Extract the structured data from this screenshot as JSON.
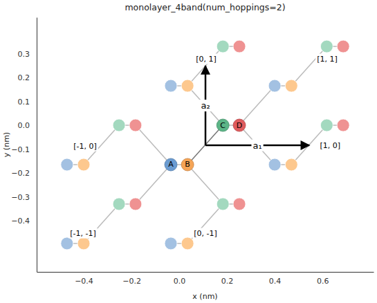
{
  "chart_data": {
    "type": "scatter",
    "title": "monolayer_4band(num_hoppings=2)",
    "x_label": "x (nm)",
    "y_label": "y (nm)",
    "xlim": [
      -0.597,
      0.814
    ],
    "ylim": [
      -0.614,
      0.452
    ],
    "xticks": [
      {
        "value": -0.4,
        "label": "−0.4"
      },
      {
        "value": -0.2,
        "label": "−0.2"
      },
      {
        "value": 0,
        "label": "0.0"
      },
      0.2,
      0.4,
      0.6
    ],
    "yticks": [
      {
        "value": -0.4,
        "label": "−0.4"
      },
      {
        "value": -0.3,
        "label": "−0.3"
      },
      {
        "value": -0.2,
        "label": "−0.2"
      },
      {
        "value": -0.1,
        "label": "−0.1"
      },
      {
        "value": 0,
        "label": "0.0"
      },
      0.1,
      0.2,
      0.3
    ],
    "grid": false,
    "series": [
      {
        "name": "A",
        "color": "#6a9bd1",
        "x": [
          -0.035
        ],
        "y": [
          -0.165
        ]
      },
      {
        "name": "B",
        "color": "#f5a456",
        "x": [
          0.035
        ],
        "y": [
          -0.165
        ]
      },
      {
        "name": "C",
        "color": "#5cb587",
        "x": [
          0.183
        ],
        "y": [
          0
        ]
      },
      {
        "name": "D",
        "color": "#e05b5d",
        "x": [
          0.252
        ],
        "y": [
          0
        ]
      }
    ],
    "neighbor_atoms": {
      "x": [
        0.4,
        -0.035,
        0.4,
        -0.47,
        -0.035,
        -0.47,
        0.47,
        0.035,
        0.47,
        -0.4,
        0.035,
        -0.4,
        0.618,
        0.183,
        0.618,
        -0.252,
        0.183,
        -0.252,
        0.687,
        0.252,
        0.687,
        -0.183,
        0.252,
        -0.183
      ],
      "y": [
        -0.165,
        0.165,
        0.165,
        -0.165,
        -0.495,
        -0.495,
        -0.165,
        0.165,
        0.165,
        -0.165,
        -0.495,
        -0.495,
        0,
        0.33,
        0.33,
        0,
        -0.33,
        -0.33,
        0,
        0.33,
        0.33,
        0,
        -0.33,
        -0.33
      ],
      "colors": [
        "#a3c1e2",
        "#a3c1e2",
        "#a3c1e2",
        "#a3c1e2",
        "#a3c1e2",
        "#a3c1e2",
        "#fdc88e",
        "#fdc88e",
        "#fdc88e",
        "#fdc88e",
        "#fdc88e",
        "#fdc88e",
        "#a3d9bf",
        "#a3d9bf",
        "#a3d9bf",
        "#a3d9bf",
        "#a3d9bf",
        "#a3d9bf",
        "#ef9292",
        "#ef9292",
        "#ef9292",
        "#ef9292",
        "#ef9292",
        "#ef9292"
      ]
    },
    "bonds": {
      "x": [
        [
          0.035,
          0.183
        ],
        [
          -0.035,
          0.035
        ],
        [
          0.4,
          0.47
        ],
        [
          -0.035,
          0.035
        ],
        [
          0.4,
          0.47
        ],
        [
          -0.47,
          -0.4
        ],
        [
          -0.035,
          0.035
        ],
        [
          -0.47,
          -0.4
        ],
        [
          0.183,
          0.252
        ],
        [
          0.618,
          0.687
        ],
        [
          0.183,
          0.252
        ],
        [
          0.618,
          0.687
        ],
        [
          -0.252,
          -0.183
        ],
        [
          0.183,
          0.252
        ],
        [
          -0.252,
          -0.183
        ],
        [
          0.035,
          0.183
        ],
        [
          0.035,
          0.183
        ],
        [
          0.035,
          0.183
        ],
        [
          0.252,
          0.4
        ],
        [
          0.252,
          0.4
        ],
        [
          0.47,
          0.618
        ],
        [
          0.47,
          0.618
        ],
        [
          -0.4,
          -0.252
        ],
        [
          -0.183,
          -0.035
        ],
        [
          -0.4,
          -0.252
        ],
        [
          -0.183,
          -0.035
        ],
        [
          0.035,
          0.183
        ]
      ],
      "y": [
        [
          -0.165,
          0
        ],
        [
          -0.165,
          -0.165
        ],
        [
          -0.165,
          -0.165
        ],
        [
          0.165,
          0.165
        ],
        [
          0.165,
          0.165
        ],
        [
          -0.165,
          -0.165
        ],
        [
          -0.495,
          -0.495
        ],
        [
          -0.495,
          -0.495
        ],
        [
          0,
          0
        ],
        [
          0,
          0
        ],
        [
          0.33,
          0.33
        ],
        [
          0.33,
          0.33
        ],
        [
          0,
          0
        ],
        [
          -0.33,
          -0.33
        ],
        [
          -0.33,
          -0.33
        ],
        [
          -0.165,
          -0.33
        ],
        [
          0.165,
          0
        ],
        [
          0.165,
          0.33
        ],
        [
          0,
          -0.165
        ],
        [
          0,
          0.165
        ],
        [
          -0.165,
          0
        ],
        [
          0.165,
          0.33
        ],
        [
          -0.165,
          0
        ],
        [
          0,
          -0.165
        ],
        [
          -0.495,
          -0.33
        ],
        [
          -0.33,
          -0.165
        ],
        [
          -0.495,
          -0.33
        ]
      ],
      "colors": [
        "#777777",
        "#bbbbbb",
        "#bbbbbb",
        "#bbbbbb",
        "#bbbbbb",
        "#bbbbbb",
        "#bbbbbb",
        "#bbbbbb",
        "#bbbbbb",
        "#bbbbbb",
        "#bbbbbb",
        "#bbbbbb",
        "#bbbbbb",
        "#bbbbbb",
        "#bbbbbb",
        "#bbbbbb",
        "#bbbbbb",
        "#bbbbbb",
        "#bbbbbb",
        "#bbbbbb",
        "#bbbbbb",
        "#bbbbbb",
        "#bbbbbb",
        "#bbbbbb",
        "#bbbbbb",
        "#bbbbbb",
        "#bbbbbb"
      ]
    },
    "lattice_vectors": [
      {
        "label": "a₁",
        "x": [
          0.11,
          0.545
        ],
        "y": [
          -0.084,
          -0.084
        ]
      },
      {
        "label": "a₂",
        "x": [
          0.11,
          0.11
        ],
        "y": [
          -0.084,
          0.249
        ]
      }
    ],
    "cell_labels": {
      "labels": [
        "[0, 1]",
        "[1, 1]",
        "[-1, 0]",
        "[1, 0]",
        "[-1, -1]",
        "[0, -1]"
      ],
      "x": [
        0.113,
        0.62,
        -0.394,
        0.632,
        -0.403,
        0.11
      ],
      "y": [
        0.278,
        0.278,
        -0.087,
        -0.084,
        -0.452,
        -0.452
      ]
    }
  }
}
